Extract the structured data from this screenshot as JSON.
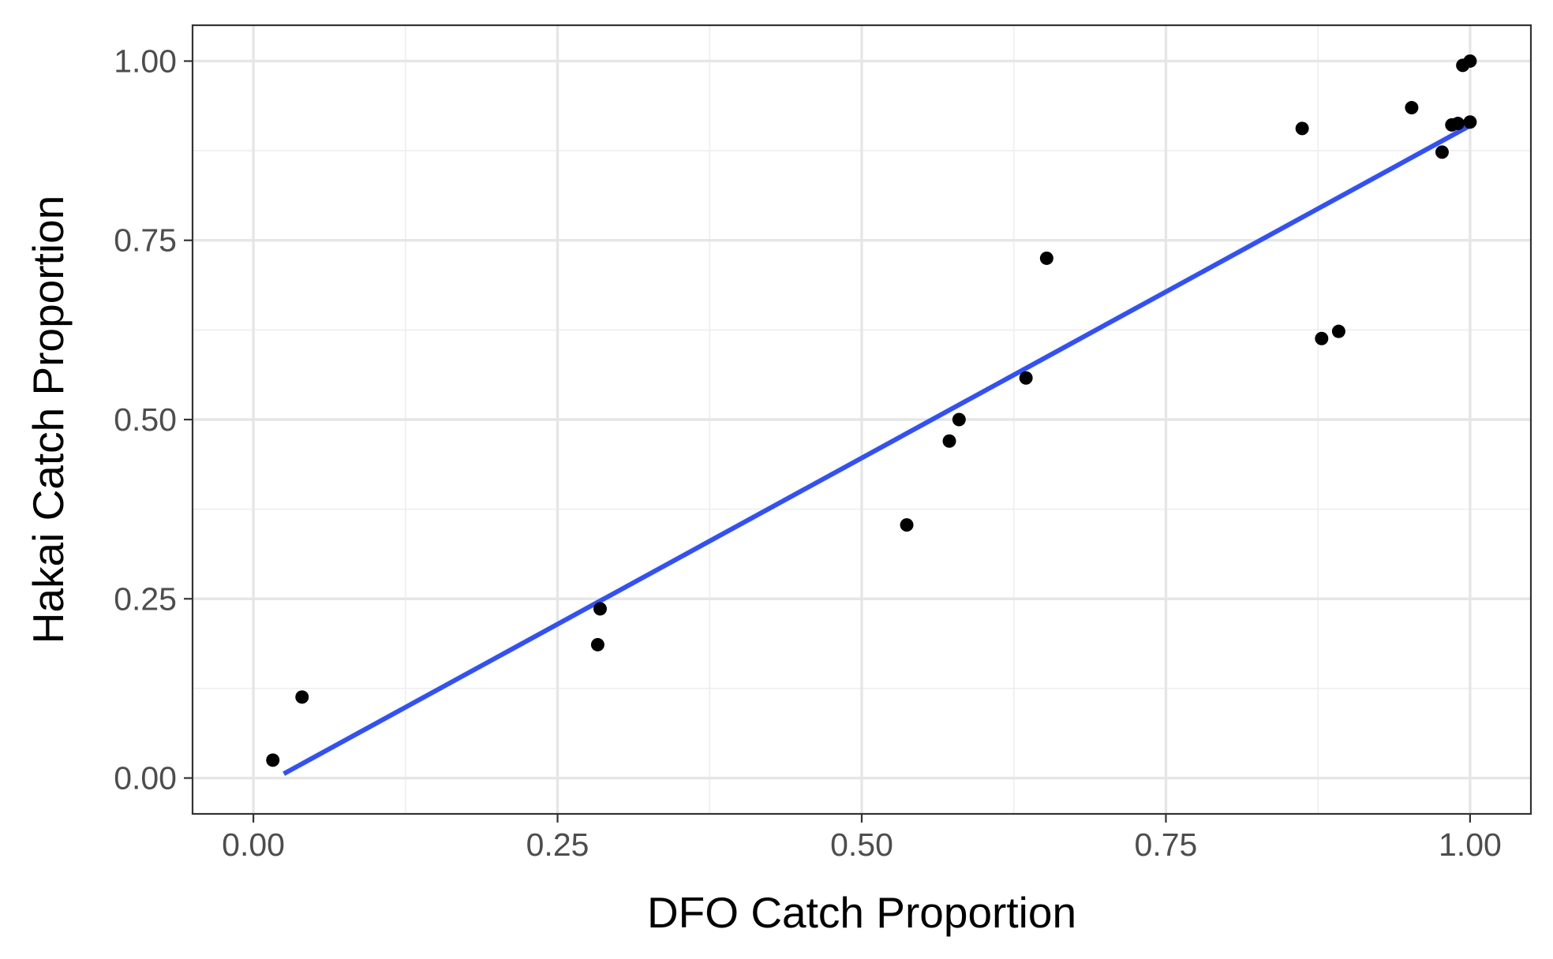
{
  "chart_data": {
    "type": "scatter",
    "xlabel": "DFO Catch Proportion",
    "ylabel": "Hakai Catch Proportion",
    "xlim": [
      -0.05,
      1.05
    ],
    "ylim": [
      -0.05,
      1.05
    ],
    "x_ticks": [
      "0.00",
      "0.25",
      "0.50",
      "0.75",
      "1.00"
    ],
    "y_ticks": [
      "0.00",
      "0.25",
      "0.50",
      "0.75",
      "1.00"
    ],
    "x_tick_values": [
      0,
      0.25,
      0.5,
      0.75,
      1
    ],
    "y_tick_values": [
      0,
      0.25,
      0.5,
      0.75,
      1
    ],
    "grid": true,
    "series": [
      {
        "type": "points",
        "color": "#000000",
        "points": [
          {
            "x": 0.016,
            "y": 0.025
          },
          {
            "x": 0.04,
            "y": 0.113
          },
          {
            "x": 0.283,
            "y": 0.186
          },
          {
            "x": 0.285,
            "y": 0.236
          },
          {
            "x": 0.537,
            "y": 0.353
          },
          {
            "x": 0.572,
            "y": 0.47
          },
          {
            "x": 0.58,
            "y": 0.5
          },
          {
            "x": 0.635,
            "y": 0.558
          },
          {
            "x": 0.652,
            "y": 0.725
          },
          {
            "x": 0.862,
            "y": 0.906
          },
          {
            "x": 0.878,
            "y": 0.613
          },
          {
            "x": 0.892,
            "y": 0.623
          },
          {
            "x": 0.952,
            "y": 0.935
          },
          {
            "x": 0.977,
            "y": 0.873
          },
          {
            "x": 0.985,
            "y": 0.911
          },
          {
            "x": 0.99,
            "y": 0.913
          },
          {
            "x": 0.994,
            "y": 0.994
          },
          {
            "x": 1.0,
            "y": 1.0
          },
          {
            "x": 1.0,
            "y": 0.915
          }
        ]
      },
      {
        "type": "line",
        "color": "#3050ff",
        "points": [
          {
            "x": 0.025,
            "y": 0.006
          },
          {
            "x": 1.0,
            "y": 0.91
          }
        ]
      }
    ]
  }
}
